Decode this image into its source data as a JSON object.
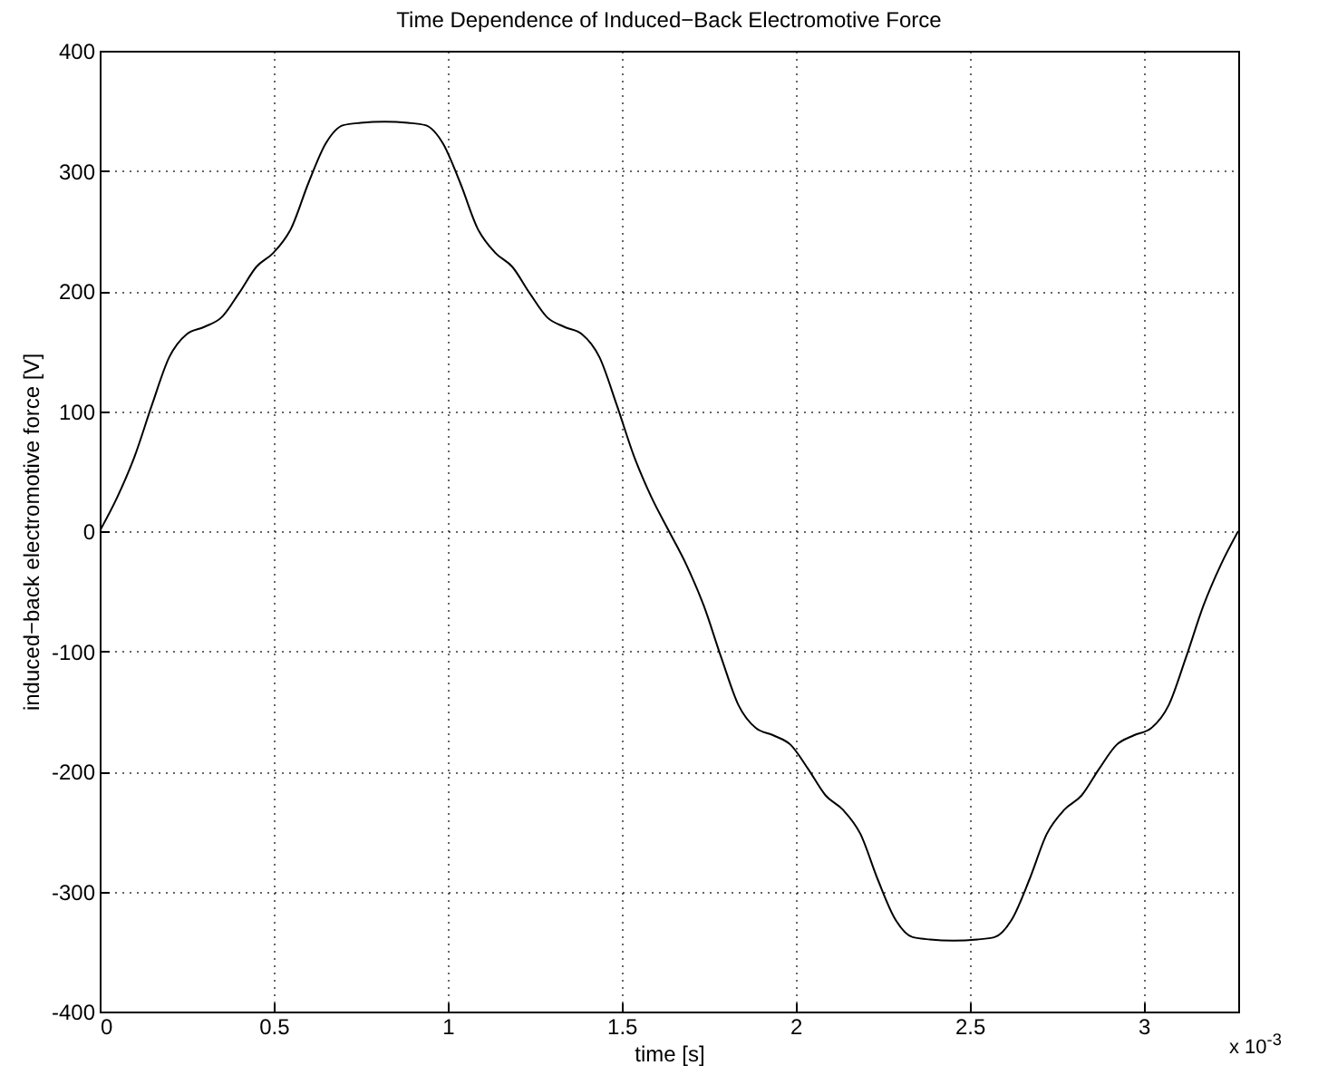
{
  "chart_data": {
    "type": "line",
    "title": "Time Dependence of Induced−Back Electromotive Force",
    "xlabel": "time [s]",
    "ylabel": "induced−back electromotive force [V]",
    "annotations": [
      "x 10$^{-3}$"
    ],
    "x": [
      0,
      0.05,
      0.1,
      0.15,
      0.2,
      0.25,
      0.3,
      0.35,
      0.4,
      0.45,
      0.5,
      0.55,
      0.6,
      0.65,
      0.7,
      0.75,
      0.818,
      0.886,
      0.936,
      0.986,
      1.036,
      1.086,
      1.136,
      1.186,
      1.236,
      1.286,
      1.336,
      1.386,
      1.436,
      1.486,
      1.536,
      1.586,
      1.636,
      1.686,
      1.736,
      1.786,
      1.836,
      1.886,
      1.936,
      1.986,
      2.036,
      2.086,
      2.136,
      2.186,
      2.236,
      2.286,
      2.336,
      2.386,
      2.454,
      2.522,
      2.572,
      2.622,
      2.672,
      2.722,
      2.772,
      2.822,
      2.872,
      2.922,
      2.972,
      3.022,
      3.072,
      3.122,
      3.172,
      3.222,
      3.272
    ],
    "series": [
      {
        "color": "#000000",
        "values": [
          0,
          28,
          62,
          105,
          145,
          164,
          170,
          178,
          198,
          220,
          232,
          252,
          290,
          323,
          338,
          340,
          341,
          340,
          338,
          323,
          290,
          252,
          232,
          220,
          198,
          178,
          170,
          164,
          145,
          105,
          62,
          28,
          0,
          -28,
          -62,
          -105,
          -145,
          -164,
          -170,
          -178,
          -198,
          -220,
          -232,
          -252,
          -290,
          -323,
          -338,
          -340,
          -341,
          -340,
          -338,
          -323,
          -290,
          -252,
          -232,
          -220,
          -198,
          -178,
          -170,
          -164,
          -145,
          -105,
          -62,
          -28,
          0
        ]
      }
    ],
    "xlim": [
      0,
      3.272
    ],
    "xticks": [
      0,
      0.5,
      1,
      1.5,
      2,
      2.5,
      3
    ],
    "ylim": [
      -400,
      400
    ],
    "yticks": [
      -400,
      -300,
      -200,
      -100,
      0,
      100,
      200,
      300,
      400
    ],
    "grid": true,
    "line_style": "solid",
    "marker": "none"
  }
}
